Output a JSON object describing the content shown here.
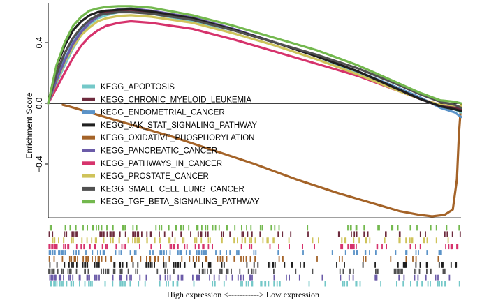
{
  "chart_data": {
    "type": "line",
    "title": "",
    "xlabel": "High expression <-----------> Low expression",
    "ylabel": "Enrichment Score",
    "xlim": [
      0,
      1
    ],
    "ylim": [
      -0.78,
      0.68
    ],
    "y_ticks": [
      {
        "value": 0.4,
        "label": "0.4"
      },
      {
        "value": 0.0,
        "label": "0.0"
      },
      {
        "value": -0.4,
        "label": "−0.4"
      }
    ],
    "grid": false,
    "legend_position": "center-left",
    "series": [
      {
        "name": "KEGG_APOPTOSIS",
        "color": "#74c8c8",
        "x": [
          0,
          0.02,
          0.04,
          0.06,
          0.08,
          0.1,
          0.12,
          0.14,
          0.17,
          0.2,
          0.25,
          0.35,
          0.45,
          0.55,
          0.65,
          0.75,
          0.85,
          0.9,
          0.95,
          0.985,
          1.0
        ],
        "y": [
          0.0,
          0.13,
          0.25,
          0.36,
          0.45,
          0.52,
          0.56,
          0.58,
          0.6,
          0.605,
          0.59,
          0.54,
          0.46,
          0.38,
          0.29,
          0.2,
          0.09,
          0.03,
          -0.02,
          -0.04,
          -0.06
        ]
      },
      {
        "name": "KEGG_CHRONIC_MYELOID_LEUKEMIA",
        "color": "#6d2a3d",
        "x": [
          0,
          0.02,
          0.04,
          0.06,
          0.08,
          0.1,
          0.12,
          0.14,
          0.17,
          0.2,
          0.25,
          0.35,
          0.45,
          0.55,
          0.65,
          0.75,
          0.85,
          0.9,
          0.95,
          0.985,
          1.0
        ],
        "y": [
          0.0,
          0.2,
          0.33,
          0.43,
          0.5,
          0.55,
          0.58,
          0.6,
          0.61,
          0.615,
          0.6,
          0.555,
          0.48,
          0.4,
          0.31,
          0.21,
          0.09,
          0.03,
          -0.02,
          -0.03,
          -0.04
        ]
      },
      {
        "name": "KEGG_ENDOMETRIAL_CANCER",
        "color": "#5b93c8",
        "x": [
          0,
          0.02,
          0.04,
          0.06,
          0.08,
          0.1,
          0.12,
          0.14,
          0.17,
          0.2,
          0.25,
          0.35,
          0.45,
          0.55,
          0.65,
          0.75,
          0.85,
          0.9,
          0.95,
          0.985,
          1.0
        ],
        "y": [
          0.0,
          0.16,
          0.29,
          0.4,
          0.48,
          0.54,
          0.58,
          0.6,
          0.615,
          0.62,
          0.605,
          0.56,
          0.48,
          0.4,
          0.31,
          0.21,
          0.1,
          0.04,
          -0.03,
          -0.06,
          -0.09
        ]
      },
      {
        "name": "KEGG_JAK_STAT_SIGNALING_PATHWAY",
        "color": "#1f1f1f",
        "x": [
          0,
          0.02,
          0.04,
          0.06,
          0.08,
          0.1,
          0.12,
          0.14,
          0.17,
          0.2,
          0.25,
          0.35,
          0.45,
          0.55,
          0.65,
          0.75,
          0.85,
          0.9,
          0.95,
          0.985,
          1.0
        ],
        "y": [
          0.0,
          0.24,
          0.38,
          0.48,
          0.54,
          0.58,
          0.6,
          0.61,
          0.615,
          0.62,
          0.605,
          0.56,
          0.485,
          0.4,
          0.31,
          0.21,
          0.09,
          0.03,
          -0.02,
          -0.04,
          -0.05
        ]
      },
      {
        "name": "KEGG_OXIDATIVE_PHOSPHORYLATION",
        "color": "#a46328",
        "x": [
          0.035,
          0.05,
          0.1,
          0.15,
          0.2,
          0.3,
          0.4,
          0.5,
          0.6,
          0.7,
          0.8,
          0.85,
          0.9,
          0.93,
          0.96,
          0.98,
          0.99,
          0.995,
          1.0
        ],
        "y": [
          -0.01,
          -0.02,
          -0.06,
          -0.1,
          -0.14,
          -0.22,
          -0.31,
          -0.4,
          -0.5,
          -0.59,
          -0.67,
          -0.71,
          -0.735,
          -0.745,
          -0.735,
          -0.7,
          -0.5,
          -0.2,
          -0.01
        ]
      },
      {
        "name": "KEGG_PANCREATIC_CANCER",
        "color": "#6b5ba8",
        "x": [
          0,
          0.02,
          0.04,
          0.06,
          0.08,
          0.1,
          0.12,
          0.14,
          0.17,
          0.2,
          0.25,
          0.35,
          0.45,
          0.55,
          0.65,
          0.75,
          0.85,
          0.9,
          0.95,
          0.985,
          1.0
        ],
        "y": [
          0.0,
          0.15,
          0.28,
          0.39,
          0.47,
          0.53,
          0.57,
          0.6,
          0.62,
          0.625,
          0.61,
          0.565,
          0.49,
          0.4,
          0.31,
          0.21,
          0.09,
          0.03,
          -0.02,
          -0.03,
          -0.03
        ]
      },
      {
        "name": "KEGG_PATHWAYS_IN_CANCER",
        "color": "#d6336c",
        "x": [
          0,
          0.02,
          0.04,
          0.06,
          0.08,
          0.1,
          0.12,
          0.14,
          0.17,
          0.2,
          0.25,
          0.35,
          0.45,
          0.55,
          0.65,
          0.75,
          0.85,
          0.9,
          0.95,
          0.985,
          1.0
        ],
        "y": [
          0.0,
          0.1,
          0.2,
          0.3,
          0.38,
          0.44,
          0.48,
          0.51,
          0.53,
          0.54,
          0.53,
          0.49,
          0.42,
          0.34,
          0.26,
          0.18,
          0.08,
          0.03,
          -0.01,
          -0.02,
          -0.02
        ]
      },
      {
        "name": "KEGG_PROSTATE_CANCER",
        "color": "#cfc35a",
        "x": [
          0,
          0.02,
          0.04,
          0.06,
          0.08,
          0.1,
          0.12,
          0.14,
          0.17,
          0.2,
          0.25,
          0.35,
          0.45,
          0.55,
          0.65,
          0.75,
          0.85,
          0.9,
          0.95,
          0.985,
          1.0
        ],
        "y": [
          0.0,
          0.14,
          0.27,
          0.37,
          0.45,
          0.5,
          0.54,
          0.56,
          0.575,
          0.58,
          0.57,
          0.53,
          0.46,
          0.38,
          0.29,
          0.19,
          0.08,
          0.03,
          -0.01,
          -0.02,
          -0.02
        ]
      },
      {
        "name": "KEGG_SMALL_CELL_LUNG_CANCER",
        "color": "#505050",
        "x": [
          0,
          0.02,
          0.04,
          0.06,
          0.08,
          0.1,
          0.12,
          0.14,
          0.17,
          0.2,
          0.25,
          0.35,
          0.45,
          0.55,
          0.65,
          0.75,
          0.85,
          0.9,
          0.95,
          0.985,
          1.0
        ],
        "y": [
          0.0,
          0.19,
          0.33,
          0.43,
          0.5,
          0.55,
          0.58,
          0.59,
          0.6,
          0.6,
          0.59,
          0.55,
          0.48,
          0.4,
          0.32,
          0.23,
          0.12,
          0.06,
          0.01,
          -0.01,
          -0.03
        ]
      },
      {
        "name": "KEGG_TGF_BETA_SIGNALING_PATHWAY",
        "color": "#73b84e",
        "x": [
          0,
          0.02,
          0.04,
          0.06,
          0.08,
          0.1,
          0.12,
          0.14,
          0.17,
          0.2,
          0.25,
          0.35,
          0.45,
          0.55,
          0.65,
          0.75,
          0.85,
          0.9,
          0.95,
          0.985,
          1.0
        ],
        "y": [
          0.0,
          0.25,
          0.4,
          0.51,
          0.57,
          0.61,
          0.625,
          0.635,
          0.64,
          0.64,
          0.63,
          0.58,
          0.51,
          0.43,
          0.35,
          0.25,
          0.13,
          0.07,
          0.02,
          0.01,
          0.0
        ]
      }
    ],
    "rug_tracks_order_top_to_bottom": [
      "KEGG_TGF_BETA_SIGNALING_PATHWAY",
      "KEGG_CHRONIC_MYELOID_LEUKEMIA",
      "KEGG_PROSTATE_CANCER",
      "KEGG_PATHWAYS_IN_CANCER",
      "KEGG_ENDOMETRIAL_CANCER",
      "KEGG_OXIDATIVE_PHOSPHORYLATION",
      "KEGG_JAK_STAT_SIGNALING_PATHWAY",
      "KEGG_SMALL_CELL_LUNG_CANCER",
      "KEGG_PANCREATIC_CANCER",
      "KEGG_APOPTOSIS"
    ]
  }
}
